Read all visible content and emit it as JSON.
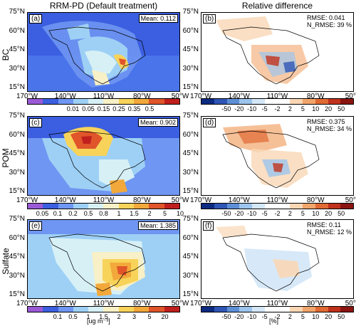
{
  "columns": [
    {
      "title": "RRM-PD (Default treatment)"
    },
    {
      "title": "Relative difference"
    }
  ],
  "rows": [
    {
      "label": "BC",
      "left": {
        "tag": "(a)",
        "stat": "Mean: 0.112",
        "colorbar": {
          "colors": [
            "#9a5ad6",
            "#3b5fe0",
            "#6f96f2",
            "#9ed0f5",
            "#d6f0f6",
            "#f8f0c6",
            "#f7d35a",
            "#f2a83a",
            "#e0552a",
            "#c0201d"
          ],
          "ticks": [
            "0.01",
            "0.05",
            "0.15",
            "0.25",
            "0.35",
            "0.5"
          ]
        }
      },
      "right": {
        "tag": "(b)",
        "stat_lines": [
          "RMSE: 0.041",
          "N_RMSE: 39 %"
        ],
        "colorbar_unit": "[%]"
      }
    },
    {
      "label": "POM",
      "left": {
        "tag": "(c)",
        "stat": "Mean: 0.902",
        "colorbar": {
          "colors": [
            "#9a5ad6",
            "#3b5fe0",
            "#6f96f2",
            "#9ed0f5",
            "#d6f0f6",
            "#f8f0c6",
            "#f7d35a",
            "#f2a83a",
            "#e0552a",
            "#c0201d"
          ],
          "ticks": [
            "0.05",
            "0.1",
            "0.2",
            "0.5",
            "0.8",
            "1",
            "1.5",
            "2",
            "5",
            "10"
          ]
        }
      },
      "right": {
        "tag": "(d)",
        "stat_lines": [
          "RMSE: 0.375",
          "N_RMSE: 34 %"
        ],
        "colorbar_unit": "[%]"
      }
    },
    {
      "label": "Sulfate",
      "left": {
        "tag": "(e)",
        "stat": "Mean: 1.385",
        "colorbar_unit": "[ug m⁻³]",
        "colorbar": {
          "colors": [
            "#9a5ad6",
            "#3b5fe0",
            "#6f96f2",
            "#9ed0f5",
            "#d6f0f6",
            "#f8f0c6",
            "#f7d35a",
            "#f2a83a",
            "#e0552a",
            "#c0201d"
          ],
          "ticks": [
            "0.1",
            "0.5",
            "1",
            "1.5",
            "2",
            "3",
            "5",
            "20"
          ]
        }
      },
      "right": {
        "tag": "(f)",
        "stat_lines": [
          "RMSE: 0.11",
          "N_RMSE: 12 %"
        ],
        "colorbar_unit": "[%]"
      }
    }
  ],
  "diff_colorbar": {
    "colors": [
      "#0b2a80",
      "#2f55b5",
      "#5d8fd6",
      "#9cc4ec",
      "#d3e7f7",
      "#ffffff",
      "#ffffff",
      "#f9d7b5",
      "#f2a56b",
      "#e06a33",
      "#c0321d",
      "#8a1410"
    ],
    "ticks": [
      "-50",
      "-20",
      "-10",
      "-5",
      "-2",
      "2",
      "5",
      "10",
      "20",
      "50"
    ]
  },
  "lat_labels": [
    "75°N",
    "60°N",
    "45°N",
    "30°N",
    "15°N"
  ],
  "lon_labels": [
    "170°W",
    "140°W",
    "110°W",
    "80°W",
    "50°W"
  ]
}
